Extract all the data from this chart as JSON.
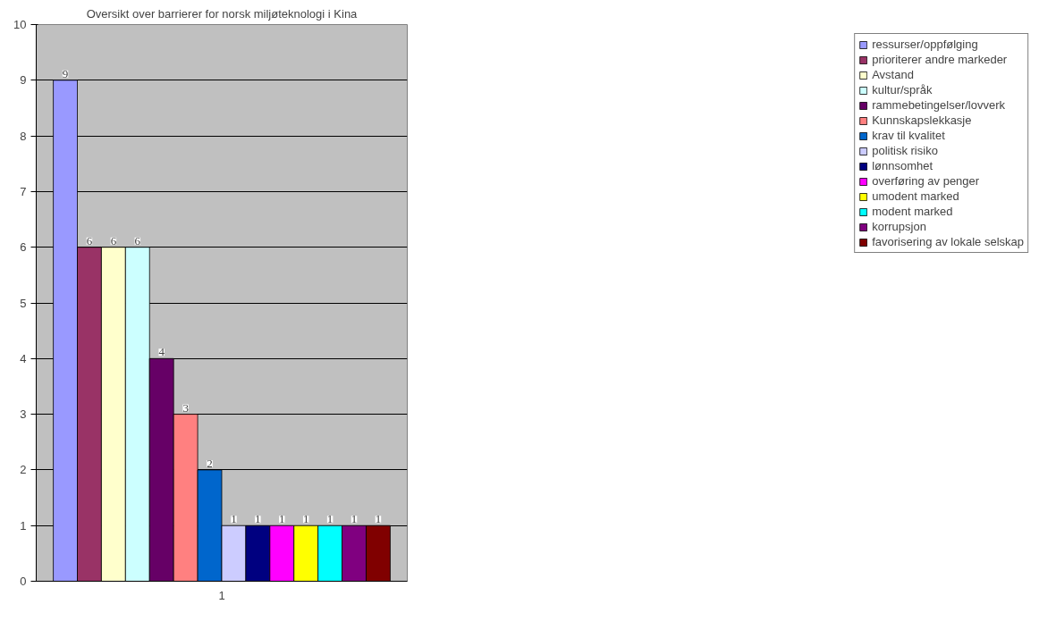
{
  "chart_data": {
    "type": "bar",
    "title": "Oversikt over barrierer for norsk miljøteknologi i Kina",
    "categories": [
      "1"
    ],
    "ylim": [
      0,
      10
    ],
    "yticks": [
      0,
      1,
      2,
      3,
      4,
      5,
      6,
      7,
      8,
      9,
      10
    ],
    "grid": "y",
    "legend": "right",
    "data_labels": true,
    "series": [
      {
        "name": "ressurser/oppfølging",
        "color": "#9999ff",
        "values": [
          9
        ]
      },
      {
        "name": "prioriterer andre markeder",
        "color": "#993366",
        "values": [
          6
        ]
      },
      {
        "name": "Avstand",
        "color": "#ffffcc",
        "values": [
          6
        ]
      },
      {
        "name": "kultur/språk",
        "color": "#ccffff",
        "values": [
          6
        ]
      },
      {
        "name": "rammebetingelser/lovverk",
        "color": "#660066",
        "values": [
          4
        ]
      },
      {
        "name": "Kunnskapslekkasje",
        "color": "#ff8080",
        "values": [
          3
        ]
      },
      {
        "name": "krav til kvalitet",
        "color": "#0066cc",
        "values": [
          2
        ]
      },
      {
        "name": "politisk risiko",
        "color": "#ccccff",
        "values": [
          1
        ]
      },
      {
        "name": "lønnsomhet",
        "color": "#000080",
        "values": [
          1
        ]
      },
      {
        "name": "overføring av penger",
        "color": "#ff00ff",
        "values": [
          1
        ]
      },
      {
        "name": "umodent marked",
        "color": "#ffff00",
        "values": [
          1
        ]
      },
      {
        "name": "modent marked",
        "color": "#00ffff",
        "values": [
          1
        ]
      },
      {
        "name": "korrupsjon",
        "color": "#800080",
        "values": [
          1
        ]
      },
      {
        "name": "favorisering av lokale selskap",
        "color": "#800000",
        "values": [
          1
        ]
      }
    ]
  }
}
